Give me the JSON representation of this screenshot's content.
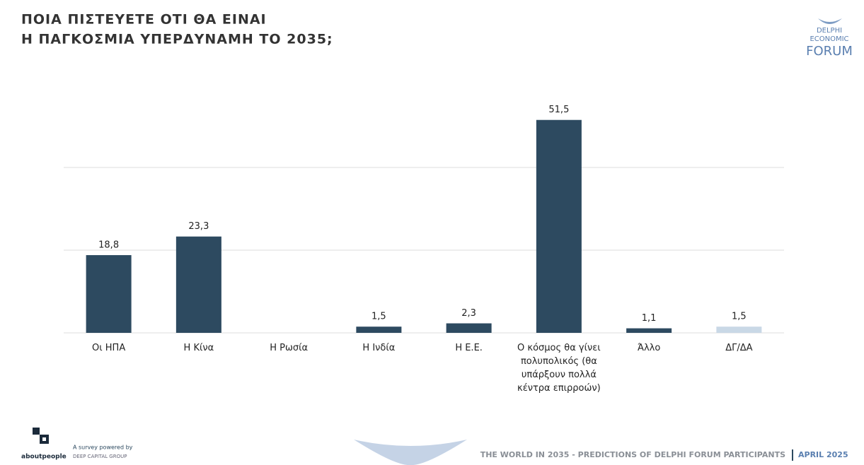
{
  "chart_data": {
    "type": "bar",
    "title": [
      "ΠΟΙΑ ΠΙΣΤΕΥΕΤΕ ΟΤΙ ΘΑ ΕΙΝΑΙ",
      "Η ΠΑΓΚΟΣΜΙΑ ΥΠΕΡΔΥΝΑΜΗ ΤΟ 2035;"
    ],
    "categories": [
      "Οι ΗΠΑ",
      "Η Κίνα",
      "Η Ρωσία",
      "Η Ινδία",
      "Η Ε.Ε.",
      "Ο κόσμος θα γίνει πολυπολικός (θα υπάρξουν πολλά κέντρα επιρροών)",
      "Άλλο",
      "ΔΓ/ΔΑ"
    ],
    "values": [
      18.8,
      23.3,
      null,
      1.5,
      2.3,
      51.5,
      1.1,
      1.5
    ],
    "value_labels": [
      "18,8",
      "23,3",
      null,
      "1,5",
      "2,3",
      "51,5",
      "1,1",
      "1,5"
    ],
    "colors": [
      "#2d4a60",
      "#2d4a60",
      "#2d4a60",
      "#2d4a60",
      "#2d4a60",
      "#2d4a60",
      "#2d4a60",
      "#c9d8e6"
    ],
    "ylim": [
      0,
      60
    ],
    "yticks": [
      0,
      20,
      40
    ],
    "grid": true
  },
  "logo": [
    "DELPHI",
    "ECONOMIC",
    "FORUM"
  ],
  "footer": {
    "brand": "aboutpeople",
    "powered": "A survey powered by",
    "group": "DEEP CAPITAL GROUP",
    "caption": "THE WORLD IN 2035 - PREDICTIONS OF DELPHI FORUM PARTICIPANTS",
    "date": "APRIL 2025"
  }
}
